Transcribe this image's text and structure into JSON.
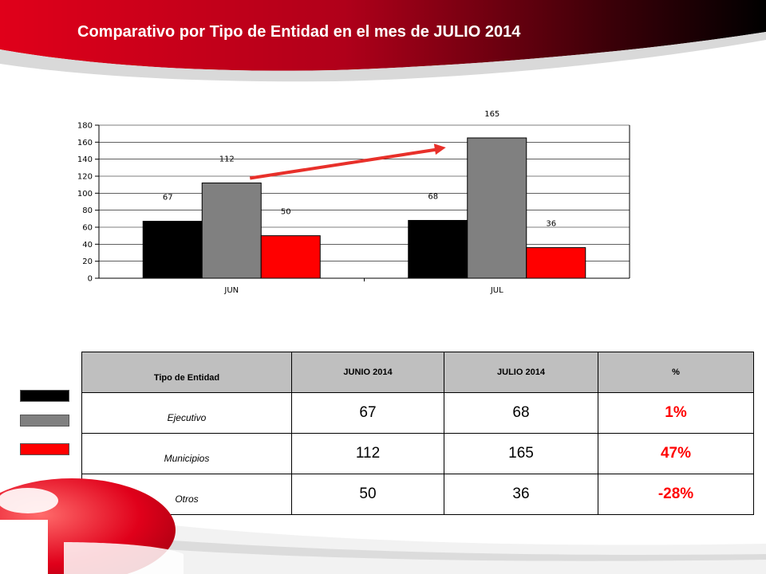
{
  "slide": {
    "title": "Comparativo por Tipo de Entidad en el mes de JULIO 2014"
  },
  "colors": {
    "ejecutivo": "#000000",
    "municipios": "#808080",
    "otros": "#ff0000",
    "accent": "#c00000"
  },
  "chart_data": {
    "type": "bar",
    "title": "",
    "xlabel": "",
    "ylabel": "",
    "categories": [
      "JUN",
      "JUL"
    ],
    "series": [
      {
        "key": "ejecutivo",
        "color": "#000000",
        "values": [
          67,
          68
        ]
      },
      {
        "key": "municipios",
        "color": "#808080",
        "values": [
          112,
          165
        ]
      },
      {
        "key": "otros",
        "color": "#ff0000",
        "values": [
          50,
          36
        ]
      }
    ],
    "data_labels": [
      [
        "67",
        "112",
        "50"
      ],
      [
        "68",
        "165",
        "36"
      ]
    ],
    "ylim": [
      0,
      180
    ],
    "yticks": [
      0,
      20,
      40,
      60,
      80,
      100,
      120,
      140,
      160,
      180
    ],
    "grid": true,
    "legend": "none",
    "annotation": "red arrow from JUN to JUL indicating increase"
  },
  "table": {
    "headers": [
      "Tipo de Entidad",
      "JUNIO 2014",
      "JULIO 2014",
      "%"
    ],
    "rows": [
      {
        "name": "Ejecutivo",
        "junio": "67",
        "julio": "68",
        "pct": "1%"
      },
      {
        "name": "Municipios",
        "junio": "112",
        "julio": "165",
        "pct": "47%"
      },
      {
        "name": "Otros",
        "junio": "50",
        "julio": "36",
        "pct": "-28%"
      }
    ]
  }
}
